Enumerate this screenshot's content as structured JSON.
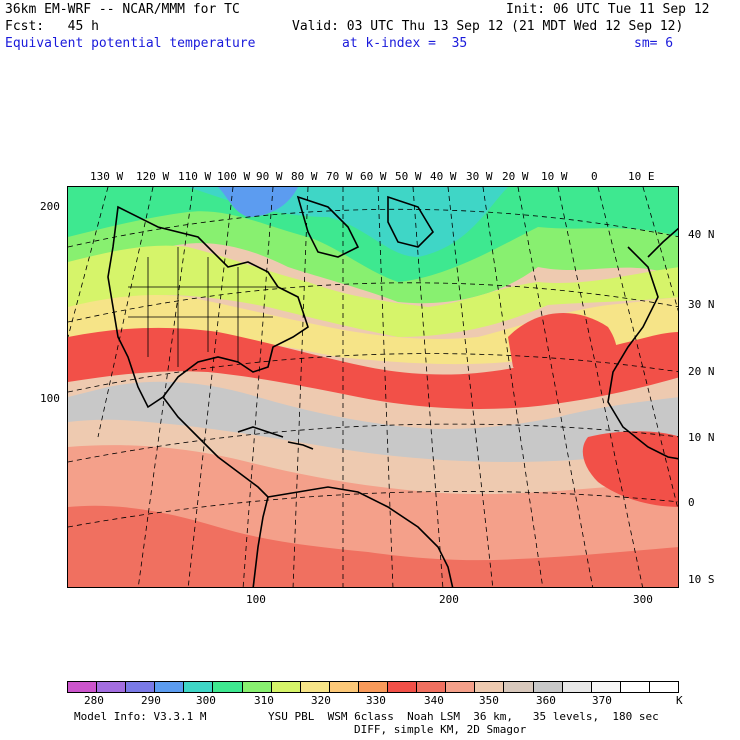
{
  "header": {
    "line1_left": "36km EM-WRF -- NCAR/MMM for TC",
    "line1_right": "Init: 06 UTC Tue 11 Sep 12",
    "line2_left": "Fcst:   45 h",
    "line2_right": "Valid: 03 UTC Thu 13 Sep 12 (21 MDT Wed 12 Sep 12)",
    "line3_field": "Equivalent potential temperature",
    "line3_level": "at k-index =  35",
    "line3_smooth": "sm= 6"
  },
  "map": {
    "top_longitudes": [
      "130 W",
      "120 W",
      "110 W",
      "100 W",
      "90 W",
      "80 W",
      "70 W",
      "60 W",
      "50 W",
      "40 W",
      "30 W",
      "20 W",
      "10 W",
      "0",
      "10 E"
    ],
    "left_ticks": [
      "200",
      "100"
    ],
    "bottom_ticks": [
      "100",
      "200",
      "300"
    ],
    "right_latitudes": [
      "40 N",
      "30 N",
      "20 N",
      "10 N",
      "0",
      "10 S"
    ]
  },
  "colorbar": {
    "colors": [
      "#cc55cc",
      "#a36ee0",
      "#7a7ae6",
      "#5c9cf0",
      "#3fd6c6",
      "#3ee890",
      "#88f070",
      "#d6f46a",
      "#f6e488",
      "#fcc878",
      "#f89a5a",
      "#f25048",
      "#f07060",
      "#f4a08a",
      "#eecab0",
      "#d8c8bc",
      "#c8c8c8",
      "#e8e8e8",
      "#f6f6f6",
      "#ffffff",
      "#ffffff"
    ],
    "labels": [
      "280",
      "290",
      "300",
      "310",
      "320",
      "330",
      "340",
      "350",
      "360",
      "370"
    ],
    "unit": "K"
  },
  "footer": {
    "line1_left": "Model Info: V3.3.1 M",
    "line1_right": "YSU PBL  WSM 6class  Noah LSM  36 km,   35 levels,  180 sec",
    "line2": "DIFF, simple KM, 2D Smagor"
  }
}
